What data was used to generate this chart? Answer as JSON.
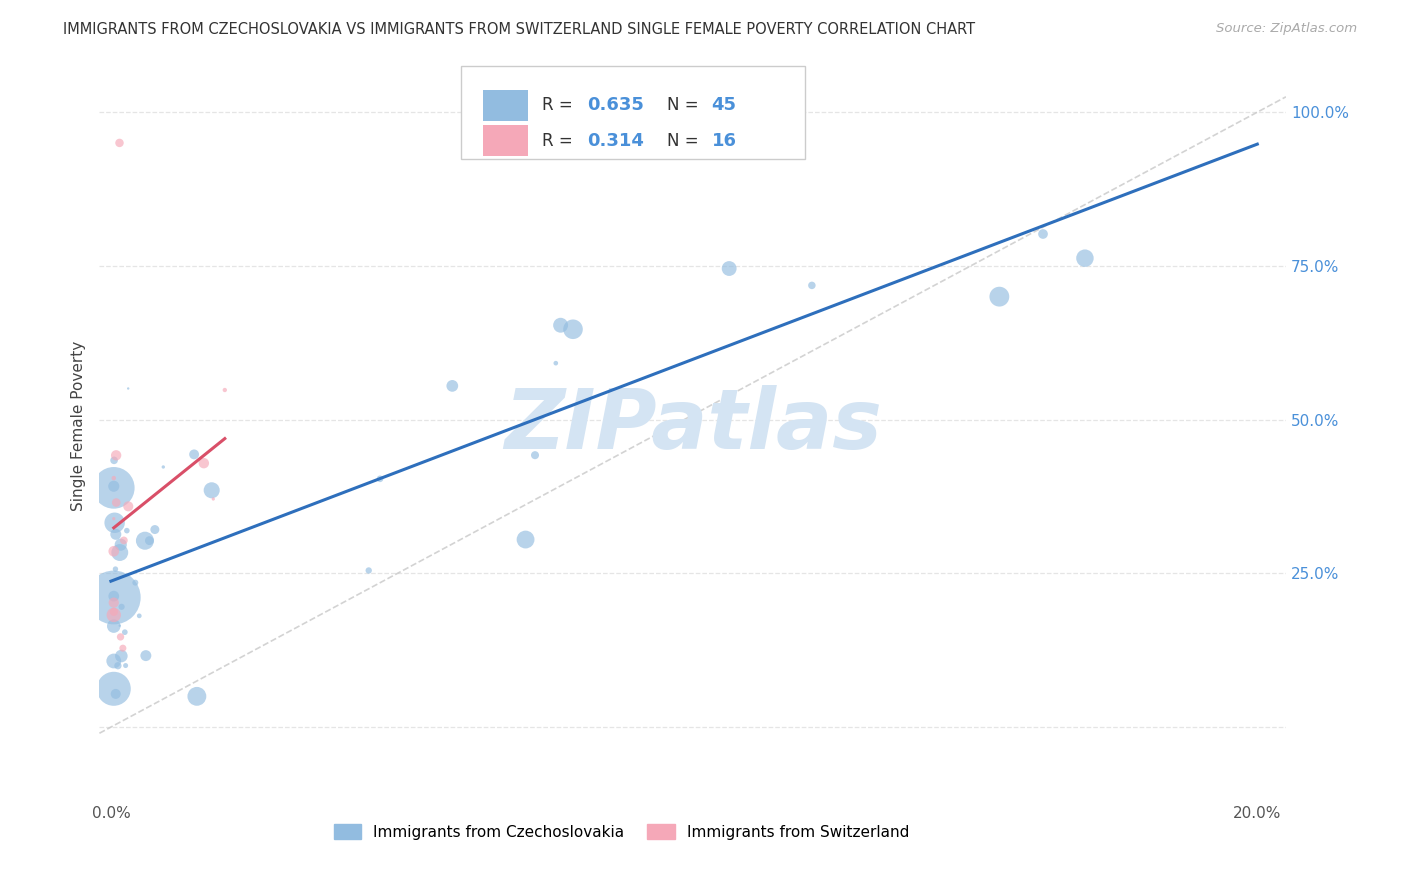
{
  "title": "IMMIGRANTS FROM CZECHOSLOVAKIA VS IMMIGRANTS FROM SWITZERLAND SINGLE FEMALE POVERTY CORRELATION CHART",
  "source": "Source: ZipAtlas.com",
  "ylabel": "Single Female Poverty",
  "legend_blue_label": "Immigrants from Czechoslovakia",
  "legend_pink_label": "Immigrants from Switzerland",
  "xlim": [
    -0.002,
    0.205
  ],
  "ylim": [
    -0.12,
    1.1
  ],
  "yticks": [
    0.0,
    0.25,
    0.5,
    0.75,
    1.0
  ],
  "xticks": [
    0.0,
    0.05,
    0.1,
    0.15,
    0.2
  ],
  "blue_color": "#92bce0",
  "pink_color": "#f5a8b8",
  "blue_line_color": "#2e6fbc",
  "pink_line_color": "#d94f68",
  "diag_color": "#c8c8c8",
  "grid_color": "#e5e5e5",
  "background_color": "#ffffff",
  "watermark": "ZIPatlas",
  "watermark_color": "#d4e4f3",
  "right_axis_color": "#4a90d9",
  "R_blue": 0.635,
  "N_blue": 45,
  "R_pink": 0.314,
  "N_pink": 16,
  "seed": 42
}
